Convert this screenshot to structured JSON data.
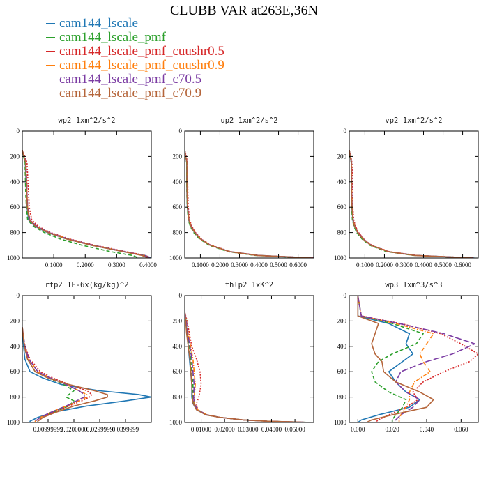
{
  "title": "CLUBB VAR at263E,36N",
  "legend": [
    {
      "label": "cam144_lscale",
      "color": "#1f77b4",
      "dash": "solid"
    },
    {
      "label": "cam144_lscale_pmf",
      "color": "#2ca02c",
      "dash": "dash"
    },
    {
      "label": "cam144_lscale_pmf_cuushr0.5",
      "color": "#d62728",
      "dash": "dot"
    },
    {
      "label": "cam144_lscale_pmf_cuushr0.9",
      "color": "#ff7f0e",
      "dash": "dashdot"
    },
    {
      "label": "cam144_lscale_pmf_c70.5",
      "color": "#7b3ca3",
      "dash": "longdash"
    },
    {
      "label": "cam144_lscale_pmf_c70.9",
      "color": "#b5653a",
      "dash": "solid"
    }
  ],
  "chart_data": [
    {
      "type": "line",
      "title": "wp2   1xm^2/s^2",
      "xlim": [
        0.0,
        0.41
      ],
      "ylim": [
        1000,
        0
      ],
      "xticks": [
        0.1,
        0.2,
        0.3,
        0.4
      ],
      "xtick_labels": [
        "0.1000",
        "0.2000",
        "0.3000",
        "0.4000"
      ],
      "yticks": [
        0,
        200,
        400,
        600,
        800,
        1000
      ],
      "ytick_labels": [
        "0",
        "200",
        "400",
        "600",
        "800",
        "1000"
      ],
      "pressure": [
        150,
        200,
        250,
        300,
        400,
        500,
        600,
        700,
        750,
        800,
        850,
        900,
        950,
        980,
        1000
      ],
      "series": [
        {
          "name": "cam144_lscale",
          "values": [
            0,
            0.005,
            0.01,
            0.01,
            0.012,
            0.013,
            0.015,
            0.02,
            0.04,
            0.08,
            0.14,
            0.22,
            0.32,
            0.39,
            0.41
          ]
        },
        {
          "name": "cam144_lscale_pmf",
          "values": [
            0,
            0.004,
            0.009,
            0.009,
            0.01,
            0.011,
            0.013,
            0.017,
            0.035,
            0.07,
            0.12,
            0.19,
            0.28,
            0.35,
            0.37
          ]
        },
        {
          "name": "cam144_lscale_pmf_cuushr0.5",
          "values": [
            0,
            0.008,
            0.015,
            0.016,
            0.018,
            0.02,
            0.022,
            0.03,
            0.05,
            0.09,
            0.15,
            0.23,
            0.33,
            0.39,
            0.41
          ]
        },
        {
          "name": "cam144_lscale_pmf_cuushr0.9",
          "values": [
            0,
            0.006,
            0.012,
            0.012,
            0.014,
            0.015,
            0.017,
            0.024,
            0.045,
            0.085,
            0.145,
            0.225,
            0.325,
            0.385,
            0.405
          ]
        },
        {
          "name": "cam144_lscale_pmf_c70.5",
          "values": [
            0,
            0.006,
            0.012,
            0.012,
            0.014,
            0.015,
            0.017,
            0.024,
            0.045,
            0.085,
            0.145,
            0.225,
            0.325,
            0.385,
            0.405
          ]
        },
        {
          "name": "cam144_lscale_pmf_c70.9",
          "values": [
            0,
            0.005,
            0.011,
            0.011,
            0.013,
            0.014,
            0.016,
            0.022,
            0.042,
            0.082,
            0.14,
            0.22,
            0.32,
            0.38,
            0.4
          ]
        }
      ]
    },
    {
      "type": "line",
      "title": "up2   1xm^2/s^2",
      "xlim": [
        0.02,
        0.68
      ],
      "ylim": [
        1000,
        0
      ],
      "xticks": [
        0.1,
        0.2,
        0.3,
        0.4,
        0.5,
        0.6
      ],
      "xtick_labels": [
        "0.1000",
        "0.2000",
        "0.3000",
        "0.4000",
        "0.5000",
        "0.6000"
      ],
      "yticks": [
        0,
        200,
        400,
        600,
        800,
        1000
      ],
      "ytick_labels": [
        "0",
        "200",
        "400",
        "600",
        "800",
        "1000"
      ],
      "pressure": [
        150,
        200,
        250,
        300,
        400,
        500,
        600,
        700,
        750,
        800,
        850,
        900,
        950,
        980,
        1000
      ],
      "series": [
        {
          "name": "cam144_lscale",
          "values": [
            0.02,
            0.025,
            0.03,
            0.03,
            0.03,
            0.031,
            0.033,
            0.04,
            0.05,
            0.07,
            0.1,
            0.15,
            0.25,
            0.4,
            0.68
          ]
        },
        {
          "name": "cam144_lscale_pmf",
          "values": [
            0.02,
            0.025,
            0.03,
            0.03,
            0.03,
            0.031,
            0.033,
            0.038,
            0.048,
            0.066,
            0.095,
            0.145,
            0.24,
            0.38,
            0.66
          ]
        },
        {
          "name": "cam144_lscale_pmf_cuushr0.5",
          "values": [
            0.02,
            0.028,
            0.034,
            0.035,
            0.035,
            0.036,
            0.038,
            0.045,
            0.056,
            0.075,
            0.105,
            0.155,
            0.255,
            0.4,
            0.68
          ]
        },
        {
          "name": "cam144_lscale_pmf_cuushr0.9",
          "values": [
            0.02,
            0.026,
            0.032,
            0.032,
            0.032,
            0.033,
            0.035,
            0.042,
            0.052,
            0.072,
            0.102,
            0.152,
            0.25,
            0.39,
            0.67
          ]
        },
        {
          "name": "cam144_lscale_pmf_c70.5",
          "values": [
            0.02,
            0.026,
            0.032,
            0.032,
            0.032,
            0.033,
            0.035,
            0.042,
            0.052,
            0.072,
            0.102,
            0.152,
            0.25,
            0.39,
            0.67
          ]
        },
        {
          "name": "cam144_lscale_pmf_c70.9",
          "values": [
            0.02,
            0.025,
            0.031,
            0.031,
            0.031,
            0.032,
            0.034,
            0.041,
            0.051,
            0.071,
            0.1,
            0.15,
            0.248,
            0.39,
            0.67
          ]
        }
      ]
    },
    {
      "type": "line",
      "title": "vp2   1xm^2/s^2",
      "xlim": [
        0.02,
        0.68
      ],
      "ylim": [
        1000,
        0
      ],
      "xticks": [
        0.1,
        0.2,
        0.3,
        0.4,
        0.5,
        0.6
      ],
      "xtick_labels": [
        "0.1000",
        "0.2000",
        "0.3000",
        "0.4000",
        "0.5000",
        "0.6000"
      ],
      "yticks": [
        0,
        200,
        400,
        600,
        800,
        1000
      ],
      "ytick_labels": [
        "0",
        "200",
        "400",
        "600",
        "800",
        "1000"
      ],
      "pressure": [
        150,
        200,
        250,
        300,
        400,
        500,
        600,
        700,
        750,
        800,
        850,
        900,
        950,
        980,
        1000
      ],
      "series": [
        {
          "name": "cam144_lscale",
          "values": [
            0.02,
            0.025,
            0.03,
            0.03,
            0.03,
            0.031,
            0.033,
            0.038,
            0.046,
            0.062,
            0.09,
            0.13,
            0.22,
            0.36,
            0.66
          ]
        },
        {
          "name": "cam144_lscale_pmf",
          "values": [
            0.02,
            0.025,
            0.03,
            0.03,
            0.03,
            0.031,
            0.032,
            0.036,
            0.044,
            0.058,
            0.085,
            0.125,
            0.21,
            0.35,
            0.64
          ]
        },
        {
          "name": "cam144_lscale_pmf_cuushr0.5",
          "values": [
            0.02,
            0.028,
            0.034,
            0.035,
            0.035,
            0.036,
            0.038,
            0.043,
            0.052,
            0.068,
            0.095,
            0.135,
            0.225,
            0.365,
            0.66
          ]
        },
        {
          "name": "cam144_lscale_pmf_cuushr0.9",
          "values": [
            0.02,
            0.026,
            0.032,
            0.032,
            0.032,
            0.033,
            0.035,
            0.04,
            0.048,
            0.064,
            0.092,
            0.132,
            0.22,
            0.36,
            0.65
          ]
        },
        {
          "name": "cam144_lscale_pmf_c70.5",
          "values": [
            0.02,
            0.026,
            0.032,
            0.032,
            0.032,
            0.033,
            0.035,
            0.04,
            0.048,
            0.064,
            0.092,
            0.132,
            0.22,
            0.36,
            0.65
          ]
        },
        {
          "name": "cam144_lscale_pmf_c70.9",
          "values": [
            0.02,
            0.025,
            0.031,
            0.031,
            0.031,
            0.032,
            0.034,
            0.039,
            0.047,
            0.063,
            0.09,
            0.13,
            0.218,
            0.355,
            0.65
          ]
        }
      ]
    },
    {
      "type": "line",
      "title": "rtp2   1E-6x(kg/kg)^2",
      "xlim": [
        0.0,
        0.05
      ],
      "ylim": [
        1000,
        0
      ],
      "xticks": [
        0.01,
        0.02,
        0.03,
        0.04
      ],
      "xtick_labels": [
        "0.00999999",
        "0.0200000",
        "0.0299999",
        "0.0399999"
      ],
      "yticks": [
        0,
        200,
        400,
        600,
        800,
        1000
      ],
      "ytick_labels": [
        "0",
        "200",
        "400",
        "600",
        "800",
        "1000"
      ],
      "pressure": [
        250,
        400,
        500,
        600,
        650,
        700,
        750,
        780,
        800,
        830,
        870,
        920,
        960,
        990,
        1000
      ],
      "series": [
        {
          "name": "cam144_lscale",
          "values": [
            0,
            0.0005,
            0.001,
            0.003,
            0.008,
            0.015,
            0.03,
            0.045,
            0.05,
            0.04,
            0.025,
            0.012,
            0.006,
            0.003,
            0.003
          ]
        },
        {
          "name": "cam144_lscale_pmf",
          "values": [
            0,
            0.0008,
            0.002,
            0.005,
            0.01,
            0.016,
            0.02,
            0.018,
            0.017,
            0.02,
            0.018,
            0.012,
            0.008,
            0.006,
            0.006
          ]
        },
        {
          "name": "cam144_lscale_pmf_cuushr0.5",
          "values": [
            0,
            0.001,
            0.003,
            0.007,
            0.012,
            0.018,
            0.025,
            0.027,
            0.026,
            0.023,
            0.018,
            0.012,
            0.008,
            0.006,
            0.006
          ]
        },
        {
          "name": "cam144_lscale_pmf_cuushr0.9",
          "values": [
            0,
            0.001,
            0.0025,
            0.006,
            0.011,
            0.017,
            0.022,
            0.025,
            0.025,
            0.022,
            0.017,
            0.011,
            0.007,
            0.005,
            0.005
          ]
        },
        {
          "name": "cam144_lscale_pmf_c70.5",
          "values": [
            0,
            0.001,
            0.0025,
            0.006,
            0.011,
            0.017,
            0.022,
            0.024,
            0.024,
            0.021,
            0.017,
            0.011,
            0.007,
            0.005,
            0.005
          ]
        },
        {
          "name": "cam144_lscale_pmf_c70.9",
          "values": [
            0,
            0.0008,
            0.002,
            0.005,
            0.01,
            0.018,
            0.028,
            0.033,
            0.033,
            0.028,
            0.02,
            0.013,
            0.008,
            0.006,
            0.006
          ]
        }
      ]
    },
    {
      "type": "line",
      "title": "thlp2   1xK^2",
      "xlim": [
        0.003,
        0.058
      ],
      "ylim": [
        1000,
        0
      ],
      "xticks": [
        0.01,
        0.02,
        0.03,
        0.04,
        0.05
      ],
      "xtick_labels": [
        "0.01000",
        "0.02000",
        "0.03000",
        "0.04000",
        "0.05000"
      ],
      "yticks": [
        0,
        200,
        400,
        600,
        800,
        1000
      ],
      "ytick_labels": [
        "0",
        "200",
        "400",
        "600",
        "800",
        "1000"
      ],
      "pressure": [
        130,
        200,
        300,
        400,
        500,
        600,
        700,
        800,
        850,
        900,
        940,
        960,
        980,
        990,
        1000
      ],
      "series": [
        {
          "name": "cam144_lscale",
          "values": [
            0.003,
            0.0035,
            0.004,
            0.0045,
            0.005,
            0.0055,
            0.006,
            0.006,
            0.0065,
            0.008,
            0.012,
            0.018,
            0.028,
            0.038,
            0.057
          ]
        },
        {
          "name": "cam144_lscale_pmf",
          "values": [
            0.003,
            0.0035,
            0.004,
            0.005,
            0.0055,
            0.006,
            0.0065,
            0.0065,
            0.007,
            0.0085,
            0.0125,
            0.018,
            0.028,
            0.038,
            0.057
          ]
        },
        {
          "name": "cam144_lscale_pmf_cuushr0.5",
          "values": [
            0.003,
            0.004,
            0.005,
            0.006,
            0.008,
            0.0095,
            0.01,
            0.009,
            0.008,
            0.0085,
            0.0125,
            0.018,
            0.028,
            0.038,
            0.057
          ]
        },
        {
          "name": "cam144_lscale_pmf_cuushr0.9",
          "values": [
            0.003,
            0.0038,
            0.0045,
            0.0055,
            0.0065,
            0.007,
            0.0075,
            0.007,
            0.0072,
            0.0085,
            0.0125,
            0.018,
            0.028,
            0.038,
            0.057
          ]
        },
        {
          "name": "cam144_lscale_pmf_c70.5",
          "values": [
            0.003,
            0.0037,
            0.0043,
            0.0052,
            0.006,
            0.0065,
            0.007,
            0.0068,
            0.007,
            0.0084,
            0.0124,
            0.018,
            0.028,
            0.038,
            0.057
          ]
        },
        {
          "name": "cam144_lscale_pmf_c70.9",
          "values": [
            0.003,
            0.0034,
            0.0038,
            0.0045,
            0.0052,
            0.0056,
            0.006,
            0.0062,
            0.0066,
            0.008,
            0.012,
            0.018,
            0.028,
            0.038,
            0.057
          ]
        }
      ]
    },
    {
      "type": "line",
      "title": "wp3   1xm^3/s^3",
      "xlim": [
        -0.005,
        0.07
      ],
      "ylim": [
        1000,
        0
      ],
      "xticks": [
        0.0,
        0.02,
        0.04,
        0.06
      ],
      "xtick_labels": [
        "0.000",
        "0.020",
        "0.040",
        "0.060"
      ],
      "yticks": [
        0,
        200,
        400,
        600,
        800,
        1000
      ],
      "ytick_labels": [
        "0",
        "200",
        "400",
        "600",
        "800",
        "1000"
      ],
      "pressure": [
        0,
        160,
        220,
        300,
        380,
        460,
        520,
        600,
        680,
        760,
        820,
        880,
        940,
        980,
        1000
      ],
      "series": [
        {
          "name": "cam144_lscale",
          "values": [
            0,
            0.0,
            0.018,
            0.03,
            0.028,
            0.032,
            0.026,
            0.018,
            0.022,
            0.028,
            0.036,
            0.03,
            0.012,
            0.002,
            0.0
          ]
        },
        {
          "name": "cam144_lscale_pmf",
          "values": [
            0,
            0.002,
            0.02,
            0.038,
            0.034,
            0.02,
            0.012,
            0.008,
            0.01,
            0.018,
            0.028,
            0.026,
            0.022,
            0.02,
            0.02
          ]
        },
        {
          "name": "cam144_lscale_pmf_cuushr0.5",
          "values": [
            0,
            0.002,
            0.025,
            0.048,
            0.06,
            0.07,
            0.065,
            0.05,
            0.038,
            0.032,
            0.035,
            0.028,
            0.018,
            0.012,
            0.01
          ]
        },
        {
          "name": "cam144_lscale_pmf_cuushr0.9",
          "values": [
            0,
            0.002,
            0.022,
            0.044,
            0.04,
            0.036,
            0.038,
            0.042,
            0.033,
            0.03,
            0.03,
            0.028,
            0.025,
            0.024,
            0.024
          ]
        },
        {
          "name": "cam144_lscale_pmf_c70.5",
          "values": [
            0,
            0.002,
            0.024,
            0.05,
            0.068,
            0.055,
            0.04,
            0.025,
            0.022,
            0.028,
            0.036,
            0.032,
            0.025,
            0.022,
            0.022
          ]
        },
        {
          "name": "cam144_lscale_pmf_c70.9",
          "values": [
            0,
            0.0,
            0.012,
            0.01,
            0.008,
            0.01,
            0.014,
            0.015,
            0.022,
            0.036,
            0.044,
            0.04,
            0.02,
            0.008,
            0.005
          ]
        }
      ]
    }
  ]
}
